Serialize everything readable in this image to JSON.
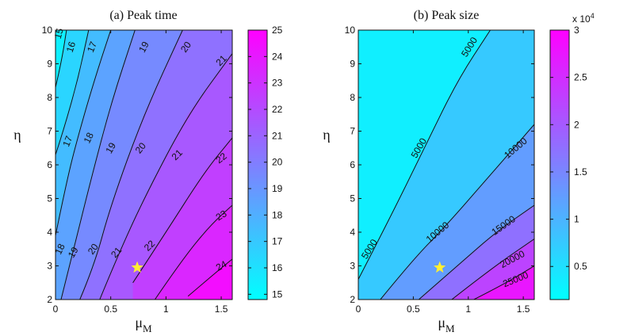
{
  "chart_data": [
    {
      "type": "heatmap",
      "subtype": "filled-contour",
      "title": "(a) Peak time",
      "xlabel": "μ",
      "xlabel_sub": "M",
      "ylabel": "η",
      "xlim": [
        0,
        1.6
      ],
      "ylim": [
        2,
        10
      ],
      "xticks": [
        0,
        0.5,
        1,
        1.5
      ],
      "xtick_labels": [
        "0",
        "0.5",
        "1",
        "1.5"
      ],
      "yticks": [
        2,
        3,
        4,
        5,
        6,
        7,
        8,
        9,
        10
      ],
      "ytick_labels": [
        "2",
        "3",
        "4",
        "5",
        "6",
        "7",
        "8",
        "9",
        "10"
      ],
      "colorbar": {
        "range": [
          14.8,
          25
        ],
        "ticks": [
          15,
          16,
          17,
          18,
          19,
          20,
          21,
          22,
          23,
          24,
          25
        ],
        "tick_labels": [
          "15",
          "16",
          "17",
          "18",
          "19",
          "20",
          "21",
          "22",
          "23",
          "24",
          "25"
        ],
        "exponent_label": "",
        "colormap": [
          "#00ffff",
          "#ff00ff"
        ]
      },
      "contours": [
        {
          "level": 16,
          "label": "16",
          "points": [
            [
              0,
              8.3
            ],
            [
              0.05,
              9
            ],
            [
              0.1,
              10
            ]
          ]
        },
        {
          "level": 17,
          "label": "17",
          "points": [
            [
              0,
              6.3
            ],
            [
              0.07,
              7
            ],
            [
              0.2,
              8.5
            ],
            [
              0.3,
              10
            ]
          ]
        },
        {
          "level": 18,
          "label": "18",
          "points": [
            [
              0,
              3.9
            ],
            [
              0.1,
              5.5
            ],
            [
              0.2,
              6.8
            ],
            [
              0.35,
              8.5
            ],
            [
              0.5,
              10
            ]
          ]
        },
        {
          "level": 19,
          "label": "19",
          "points": [
            [
              0.05,
              2
            ],
            [
              0.15,
              3.3
            ],
            [
              0.3,
              5.3
            ],
            [
              0.5,
              7.8
            ],
            [
              0.72,
              10
            ]
          ]
        },
        {
          "level": 20,
          "label": "20",
          "points": [
            [
              0.22,
              2
            ],
            [
              0.35,
              3
            ],
            [
              0.5,
              4.8
            ],
            [
              0.8,
              7.5
            ],
            [
              1.15,
              10
            ]
          ]
        },
        {
          "level": 21,
          "label": "21",
          "points": [
            [
              0.4,
              2
            ],
            [
              0.55,
              3.2
            ],
            [
              0.8,
              5
            ],
            [
              1.2,
              7.5
            ],
            [
              1.6,
              9.3
            ]
          ]
        },
        {
          "level": 22,
          "label": "22",
          "points": [
            [
              0.7,
              2.5
            ],
            [
              1,
              4
            ],
            [
              1.35,
              5.8
            ],
            [
              1.6,
              6.8
            ]
          ]
        },
        {
          "level": 23,
          "label": "23",
          "points": [
            [
              0.9,
              2
            ],
            [
              1.15,
              3.2
            ],
            [
              1.4,
              4.2
            ],
            [
              1.6,
              4.8
            ]
          ]
        },
        {
          "level": 24,
          "label": "24",
          "points": [
            [
              1.2,
              2.1
            ],
            [
              1.45,
              2.8
            ],
            [
              1.6,
              3.2
            ]
          ]
        }
      ],
      "contour_label_positions": [
        {
          "label": "15",
          "x": 0.03,
          "y": 9.9,
          "angle": 75
        },
        {
          "label": "16",
          "x": 0.14,
          "y": 9.5,
          "angle": 72
        },
        {
          "label": "17",
          "x": 0.33,
          "y": 9.5,
          "angle": 68
        },
        {
          "label": "19",
          "x": 0.8,
          "y": 9.5,
          "angle": 62
        },
        {
          "label": "20",
          "x": 1.18,
          "y": 9.5,
          "angle": 55
        },
        {
          "label": "21",
          "x": 1.5,
          "y": 9.1,
          "angle": 45
        },
        {
          "label": "17",
          "x": 0.11,
          "y": 6.7,
          "angle": 68
        },
        {
          "label": "18",
          "x": 0.3,
          "y": 6.8,
          "angle": 64
        },
        {
          "label": "19",
          "x": 0.5,
          "y": 6.5,
          "angle": 60
        },
        {
          "label": "20",
          "x": 0.77,
          "y": 6.5,
          "angle": 52
        },
        {
          "label": "21",
          "x": 1.1,
          "y": 6.3,
          "angle": 45
        },
        {
          "label": "22",
          "x": 1.5,
          "y": 6.2,
          "angle": 38
        },
        {
          "label": "18",
          "x": 0.04,
          "y": 3.5,
          "angle": 65
        },
        {
          "label": "19",
          "x": 0.16,
          "y": 3.4,
          "angle": 60
        },
        {
          "label": "20",
          "x": 0.34,
          "y": 3.5,
          "angle": 55
        },
        {
          "label": "21",
          "x": 0.55,
          "y": 3.4,
          "angle": 50
        },
        {
          "label": "22",
          "x": 0.85,
          "y": 3.6,
          "angle": 45
        },
        {
          "label": "23",
          "x": 1.5,
          "y": 4.5,
          "angle": 32
        },
        {
          "label": "24",
          "x": 1.5,
          "y": 3.0,
          "angle": 28
        }
      ],
      "marker": {
        "shape": "star",
        "color": "#ffee33",
        "x": 0.74,
        "y": 2.95
      }
    },
    {
      "type": "heatmap",
      "subtype": "filled-contour",
      "title": "(b) Peak size",
      "xlabel": "μ",
      "xlabel_sub": "M",
      "ylabel": "η",
      "xlim": [
        0,
        1.6
      ],
      "ylim": [
        2,
        10
      ],
      "xticks": [
        0,
        0.5,
        1,
        1.5
      ],
      "xtick_labels": [
        "0",
        "0.5",
        "1",
        "1.5"
      ],
      "yticks": [
        2,
        3,
        4,
        5,
        6,
        7,
        8,
        9,
        10
      ],
      "ytick_labels": [
        "2",
        "3",
        "4",
        "5",
        "6",
        "7",
        "8",
        "9",
        "10"
      ],
      "colorbar": {
        "range": [
          1500,
          30000
        ],
        "ticks": [
          5000,
          10000,
          15000,
          20000,
          25000,
          30000
        ],
        "tick_labels": [
          "0.5",
          "1",
          "1.5",
          "2",
          "2.5",
          "3"
        ],
        "exponent_label": "x 10",
        "exponent_power": "4",
        "colormap": [
          "#00ffff",
          "#ff00ff"
        ]
      },
      "contours": [
        {
          "level": 5000,
          "label": "5000",
          "points": [
            [
              0,
              2.6
            ],
            [
              0.3,
              4.5
            ],
            [
              0.6,
              6.5
            ],
            [
              0.9,
              8.5
            ],
            [
              1.2,
              10
            ]
          ]
        },
        {
          "level": 10000,
          "label": "10000",
          "points": [
            [
              0.2,
              2
            ],
            [
              0.5,
              3.2
            ],
            [
              0.8,
              4.2
            ],
            [
              1.2,
              5.7
            ],
            [
              1.6,
              7.2
            ]
          ]
        },
        {
          "level": 15000,
          "label": "15000",
          "points": [
            [
              0.55,
              2
            ],
            [
              0.9,
              3
            ],
            [
              1.25,
              4
            ],
            [
              1.6,
              4.8
            ]
          ]
        },
        {
          "level": 20000,
          "label": "20000",
          "points": [
            [
              0.85,
              2
            ],
            [
              1.2,
              2.9
            ],
            [
              1.6,
              3.8
            ]
          ]
        },
        {
          "level": 25000,
          "label": "25000",
          "points": [
            [
              1.05,
              2
            ],
            [
              1.35,
              2.5
            ],
            [
              1.6,
              3
            ]
          ]
        }
      ],
      "contour_label_positions": [
        {
          "label": "5000",
          "x": 1.01,
          "y": 9.5,
          "angle": 58
        },
        {
          "label": "5000",
          "x": 0.55,
          "y": 6.5,
          "angle": 60
        },
        {
          "label": "5000",
          "x": 0.1,
          "y": 3.5,
          "angle": 58
        },
        {
          "label": "10000",
          "x": 1.43,
          "y": 6.5,
          "angle": 40
        },
        {
          "label": "10000",
          "x": 0.72,
          "y": 4.0,
          "angle": 40
        },
        {
          "label": "15000",
          "x": 1.32,
          "y": 4.2,
          "angle": 35
        },
        {
          "label": "20000",
          "x": 1.4,
          "y": 3.2,
          "angle": 28
        },
        {
          "label": "25000",
          "x": 1.43,
          "y": 2.6,
          "angle": 22
        }
      ],
      "marker": {
        "shape": "star",
        "color": "#ffee33",
        "x": 0.74,
        "y": 2.95
      }
    }
  ]
}
